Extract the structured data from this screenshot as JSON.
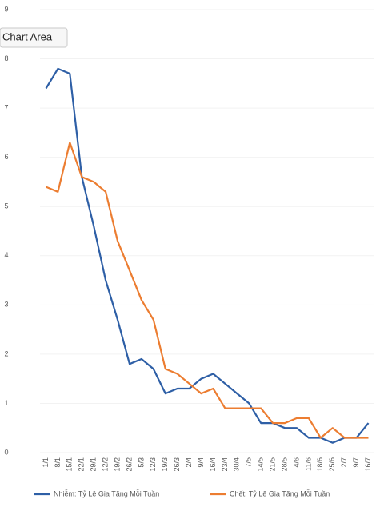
{
  "chart_data": {
    "type": "line",
    "tooltip": "Chart Area",
    "categories": [
      "1/1",
      "8/1",
      "15/1",
      "22/1",
      "29/1",
      "12/2",
      "19/2",
      "26/2",
      "5/3",
      "12/3",
      "19/3",
      "26/3",
      "2/4",
      "9/4",
      "16/4",
      "23/4",
      "30/4",
      "7/5",
      "14/5",
      "21/5",
      "28/5",
      "4/6",
      "11/6",
      "18/6",
      "25/6",
      "2/7",
      "9/7",
      "16/7"
    ],
    "series": [
      {
        "name": "Nhiễm: Tỷ Lệ Gia Tăng   Mỗi Tuần",
        "color": "#2e5fa6",
        "values": [
          7.4,
          7.8,
          7.7,
          5.6,
          4.6,
          3.5,
          2.7,
          1.8,
          1.9,
          1.7,
          1.2,
          1.3,
          1.3,
          1.5,
          1.6,
          1.4,
          1.2,
          1.0,
          0.6,
          0.6,
          0.5,
          0.5,
          0.3,
          0.3,
          0.2,
          0.3,
          0.3,
          0.6
        ]
      },
      {
        "name": "Chết: Tỷ Lệ Gia Tăng Mỗi Tuần",
        "color": "#ec7d31",
        "values": [
          5.4,
          5.3,
          6.3,
          5.6,
          5.5,
          5.3,
          4.3,
          3.7,
          3.1,
          2.7,
          1.7,
          1.6,
          1.4,
          1.2,
          1.3,
          0.9,
          0.9,
          0.9,
          0.9,
          0.6,
          0.6,
          0.7,
          0.7,
          0.3,
          0.5,
          0.3,
          0.3,
          0.3
        ]
      }
    ],
    "ylim": [
      0,
      9
    ],
    "yticks": [
      0,
      1,
      2,
      3,
      4,
      5,
      6,
      7,
      8,
      9
    ],
    "grid": true
  }
}
